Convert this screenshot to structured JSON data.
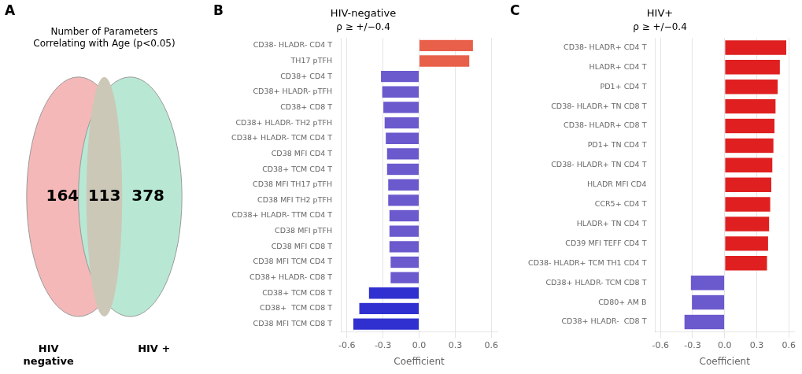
{
  "chart_data": [
    {
      "type": "venn",
      "title": "Number of Parameters\nCorrelating with Age (p<0.05)",
      "annotations": [
        "A"
      ],
      "categories": [
        "HIV\nnegative",
        null,
        "HIV +"
      ],
      "values": [
        164,
        113,
        378
      ],
      "colors": [
        "#f5b8b8",
        "#ccc8b8",
        "#b8e8d4"
      ]
    },
    {
      "type": "bar",
      "orientation": "horizontal",
      "title": "HIV-negative",
      "subtitle": "ρ ≥ +/−0.4",
      "annotations": [
        "B"
      ],
      "categories": [
        "CD38- HLADR- CD4 T",
        "TH17 pTFH",
        "CD38+ CD4 T",
        "CD38+ HLADR- pTFH",
        "CD38+ CD8 T",
        "CD38+ HLADR- TH2 pTFH",
        "CD38+ HLADR- TCM CD4 T",
        "CD38 MFI CD4 T",
        "CD38+ TCM CD4 T",
        "CD38 MFI TH17 pTFH",
        "CD38 MFI TH2 pTFH",
        "CD38+ HLADR- TTM CD4 T",
        "CD38 MFI pTFH",
        "CD38 MFI CD8 T",
        "CD38 MFI TCM CD4 T",
        "CD38+ HLADR- CD8 T",
        "CD38+ TCM CD8 T",
        "CD38+  TCM CD8 T",
        "CD38 MFI TCM CD8 T"
      ],
      "values": [
        0.45,
        0.42,
        -0.32,
        -0.31,
        -0.3,
        -0.29,
        -0.28,
        -0.27,
        -0.27,
        -0.26,
        -0.26,
        -0.25,
        -0.25,
        -0.25,
        -0.24,
        -0.24,
        -0.42,
        -0.5,
        -0.55
      ],
      "colors": [
        "#e8604a",
        "#e8604a",
        "#6a5acd",
        "#6a5acd",
        "#6a5acd",
        "#6a5acd",
        "#6a5acd",
        "#6a5acd",
        "#6a5acd",
        "#6a5acd",
        "#6a5acd",
        "#6a5acd",
        "#6a5acd",
        "#6a5acd",
        "#6a5acd",
        "#6a5acd",
        "#3030d0",
        "#3030d0",
        "#3030d0"
      ],
      "xlabel": "Coefficient",
      "xlim": [
        -0.65,
        0.65
      ],
      "xticks": [
        -0.6,
        -0.3,
        {
          "value": 0,
          "label": "0.0"
        },
        0.3,
        0.6
      ],
      "grid": true
    },
    {
      "type": "bar",
      "orientation": "horizontal",
      "title": "HIV+",
      "subtitle": "ρ ≥ +/−0.4",
      "annotations": [
        "C"
      ],
      "categories": [
        "CD38- HLADR+ CD4 T",
        "HLADR+ CD4 T",
        "PD1+ CD4 T",
        "CD38- HLADR+ TN CD8 T",
        "CD38- HLADR+ CD8 T",
        "PD1+ TN CD4 T",
        "CD38- HLADR+ TN CD4 T",
        "HLADR MFI CD4",
        "CCR5+ CD4 T",
        "HLADR+ TN CD4 T",
        "CD39 MFI TEFF CD4 T",
        "CD38- HLADR+ TCM TH1 CD4 T",
        "CD38+ HLADR- TCM CD8 T",
        "CD80+ AM B",
        "CD38+ HLADR-  CD8 T"
      ],
      "values": [
        0.58,
        0.52,
        0.5,
        0.48,
        0.47,
        0.46,
        0.45,
        0.44,
        0.43,
        0.42,
        0.41,
        0.4,
        -0.32,
        -0.31,
        -0.38
      ],
      "colors": [
        "#e02020",
        "#e02020",
        "#e02020",
        "#e02020",
        "#e02020",
        "#e02020",
        "#e02020",
        "#e02020",
        "#e02020",
        "#e02020",
        "#e02020",
        "#e02020",
        "#6a5acd",
        "#6a5acd",
        "#6a5acd"
      ],
      "xlabel": "Coefficient",
      "xlim": [
        -0.65,
        0.65
      ],
      "xticks": [
        -0.6,
        -0.3,
        {
          "value": 0,
          "label": "0.0"
        },
        0.3,
        0.6
      ],
      "grid": true
    }
  ]
}
